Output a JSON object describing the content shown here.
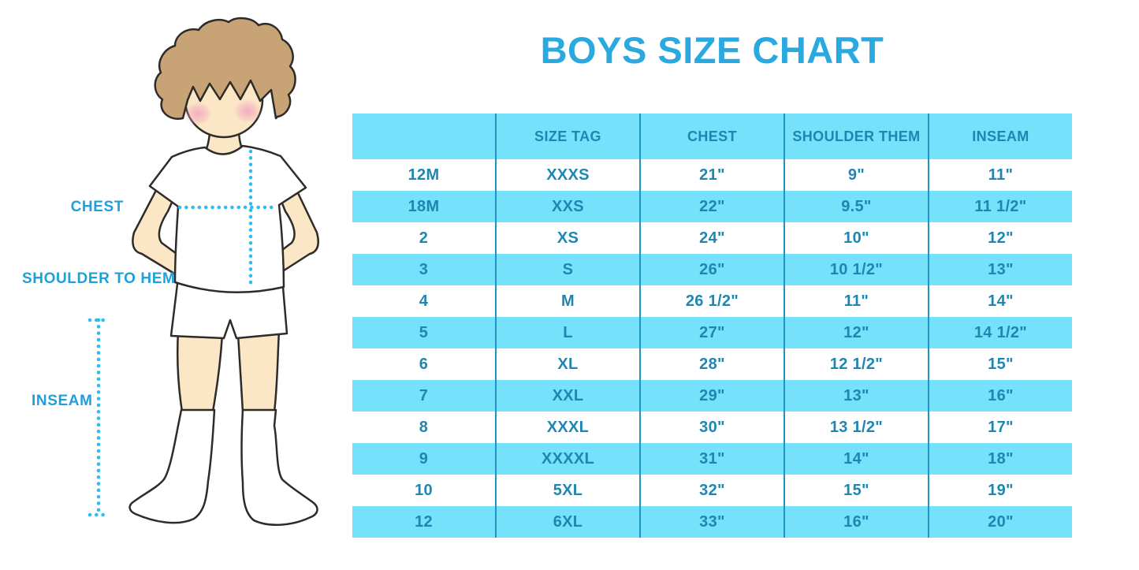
{
  "title": "BOYS SIZE CHART",
  "diagram": {
    "labels": {
      "chest": "CHEST",
      "shoulder_to_hem": "SHOULDER TO HEM",
      "inseam": "INSEAM"
    }
  },
  "chart_data": {
    "type": "table",
    "title": "BOYS SIZE CHART",
    "columns": [
      "",
      "SIZE TAG",
      "CHEST",
      "SHOULDER THEM",
      "INSEAM"
    ],
    "rows": [
      [
        "12M",
        "XXXS",
        "21\"",
        "9\"",
        "11\""
      ],
      [
        "18M",
        "XXS",
        "22\"",
        "9.5\"",
        "11 1/2\""
      ],
      [
        "2",
        "XS",
        "24\"",
        "10\"",
        "12\""
      ],
      [
        "3",
        "S",
        "26\"",
        "10 1/2\"",
        "13\""
      ],
      [
        "4",
        "M",
        "26 1/2\"",
        "11\"",
        "14\""
      ],
      [
        "5",
        "L",
        "27\"",
        "12\"",
        "14 1/2\""
      ],
      [
        "6",
        "XL",
        "28\"",
        "12 1/2\"",
        "15\""
      ],
      [
        "7",
        "XXL",
        "29\"",
        "13\"",
        "16\""
      ],
      [
        "8",
        "XXXL",
        "30\"",
        "13 1/2\"",
        "17\""
      ],
      [
        "9",
        "XXXXL",
        "31\"",
        "14\"",
        "18\""
      ],
      [
        "10",
        "5XL",
        "32\"",
        "15\"",
        "19\""
      ],
      [
        "12",
        "6XL",
        "33\"",
        "16\"",
        "20\""
      ]
    ],
    "layout": {
      "row_striping": "alternating white / light blue starting white",
      "grid": "internal vertical separators only, no outer border"
    }
  },
  "colors": {
    "title_blue": "#29A9E0",
    "band_blue": "#76E1FB",
    "table_text": "#1D87B2",
    "separator": "#1E94C4",
    "label_blue": "#1F9FDB",
    "dotted_cyan": "#2FBCEE",
    "skin": "#FBE7C6",
    "hair": "#C7A376",
    "blush": "#F2A8C0",
    "outline": "#2E2B29"
  }
}
